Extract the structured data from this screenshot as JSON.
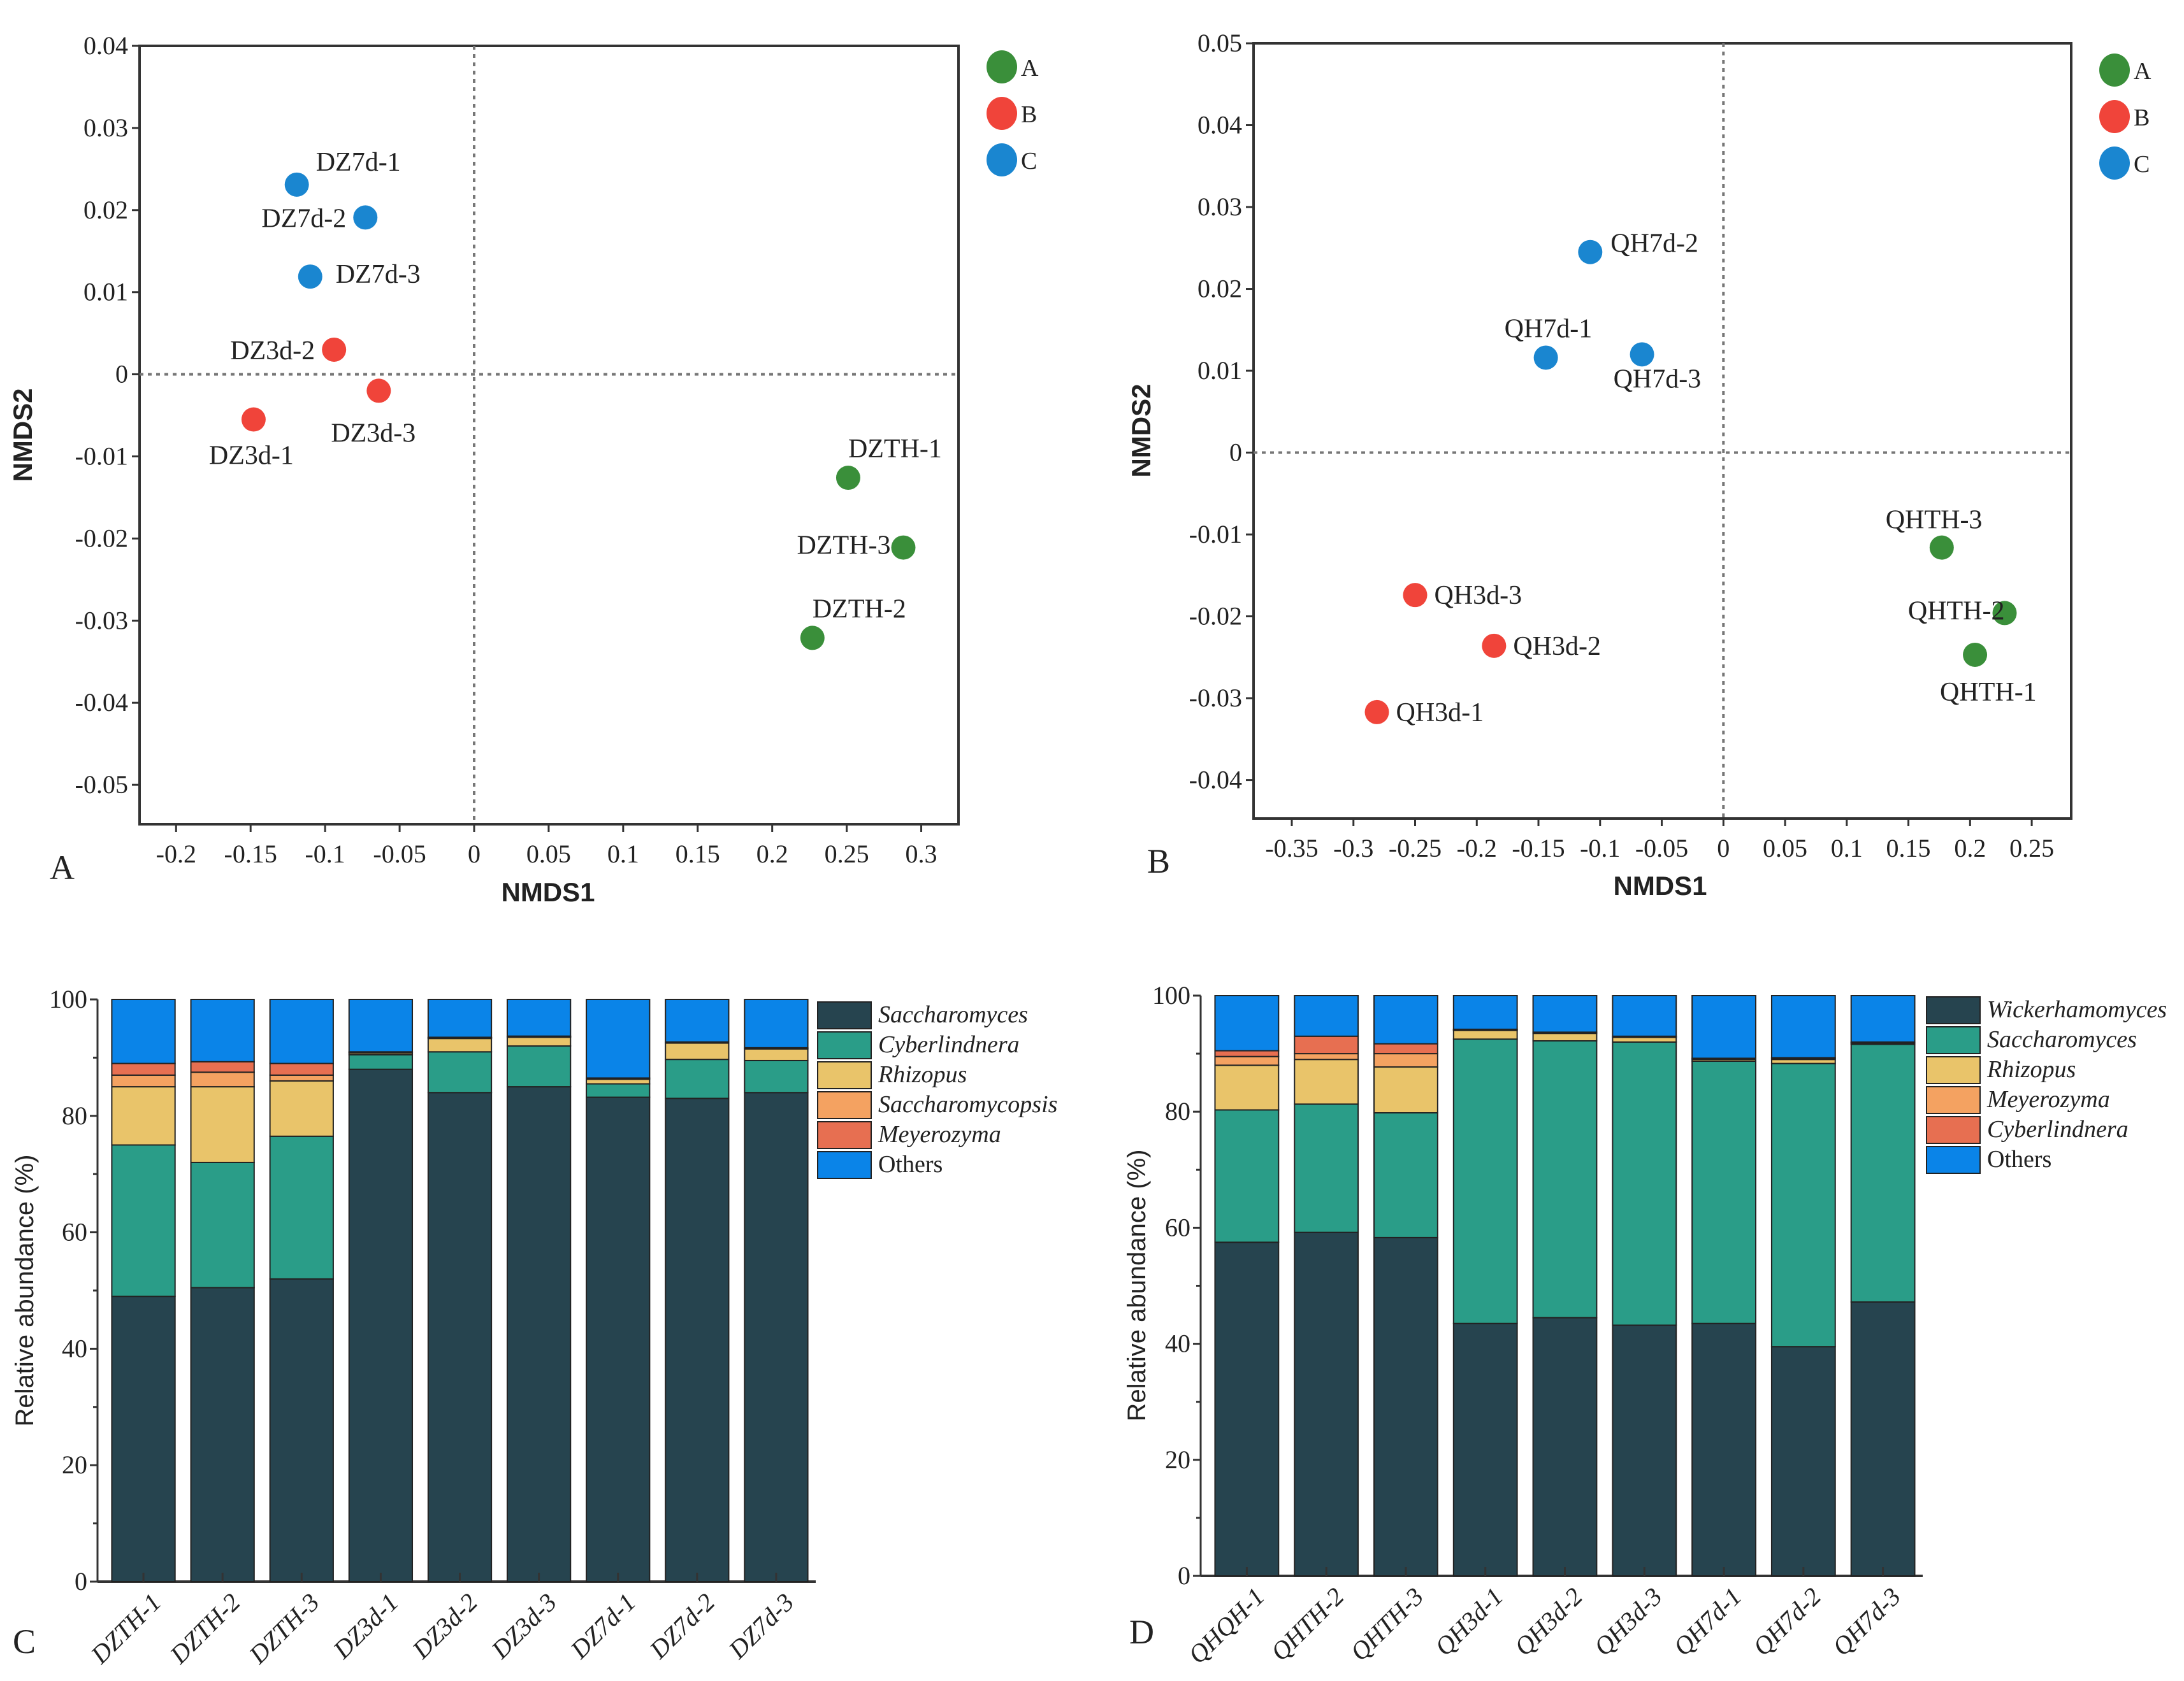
{
  "chart_data": [
    {
      "type": "scatter",
      "panel_label": "A",
      "xlabel": "NMDS1",
      "ylabel": "NMDS2",
      "xlim": [
        -0.2245,
        0.325
      ],
      "ylim": [
        -0.0548,
        0.04
      ],
      "xticks": [
        "-0.2",
        "-0.15",
        "-0.1",
        "-0.05",
        "0",
        "0.05",
        "0.1",
        "0.15",
        "0.2",
        "0.25",
        "0.3"
      ],
      "yticks": [
        "-0.05",
        "-0.04",
        "-0.03",
        "-0.02",
        "-0.01",
        "0",
        "0.01",
        "0.02",
        "0.03",
        "0.04"
      ],
      "reference_lines": "dotted at x=0 and y=0",
      "legend": [
        {
          "name": "A",
          "color": "#3a8f3a"
        },
        {
          "name": "B",
          "color": "#f0443a"
        },
        {
          "name": "C",
          "color": "#1a86d0"
        }
      ],
      "points": [
        {
          "label": "DZ7d-1",
          "group": "C",
          "x": -0.119,
          "y": 0.0231
        },
        {
          "label": "DZ7d-2",
          "group": "C",
          "x": -0.073,
          "y": 0.0191
        },
        {
          "label": "DZ7d-3",
          "group": "C",
          "x": -0.11,
          "y": 0.0119
        },
        {
          "label": "DZ3d-2",
          "group": "B",
          "x": -0.094,
          "y": 0.003
        },
        {
          "label": "DZ3d-3",
          "group": "B",
          "x": -0.064,
          "y": -0.002
        },
        {
          "label": "DZ3d-1",
          "group": "B",
          "x": -0.148,
          "y": -0.0055
        },
        {
          "label": "DZTH-1",
          "group": "A",
          "x": 0.251,
          "y": -0.0126
        },
        {
          "label": "DZTH-3",
          "group": "A",
          "x": 0.288,
          "y": -0.0211
        },
        {
          "label": "DZTH-2",
          "group": "A",
          "x": 0.227,
          "y": -0.0321
        }
      ]
    },
    {
      "type": "scatter",
      "panel_label": "B",
      "xlabel": "NMDS1",
      "ylabel": "NMDS2",
      "xlim": [
        -0.381,
        0.282
      ],
      "ylim": [
        -0.0447,
        0.05
      ],
      "xticks": [
        "-0.35",
        "-0.3",
        "-0.25",
        "-0.2",
        "-0.15",
        "-0.1",
        "-0.05",
        "0",
        "0.05",
        "0.1",
        "0.15",
        "0.2",
        "0.25"
      ],
      "yticks": [
        "-0.04",
        "-0.03",
        "-0.02",
        "-0.01",
        "0",
        "0.01",
        "0.02",
        "0.03",
        "0.04",
        "0.05"
      ],
      "reference_lines": "dotted at x=0 and y=0",
      "legend": [
        {
          "name": "A",
          "color": "#3a8f3a"
        },
        {
          "name": "B",
          "color": "#f0443a"
        },
        {
          "name": "C",
          "color": "#1a86d0"
        }
      ],
      "points": [
        {
          "label": "QH7d-2",
          "group": "C",
          "x": -0.108,
          "y": 0.0245
        },
        {
          "label": "QH7d-1",
          "group": "C",
          "x": -0.144,
          "y": 0.0116
        },
        {
          "label": "QH7d-3",
          "group": "C",
          "x": -0.066,
          "y": 0.012
        },
        {
          "label": "QH3d-3",
          "group": "B",
          "x": -0.25,
          "y": -0.0174
        },
        {
          "label": "QH3d-2",
          "group": "B",
          "x": -0.186,
          "y": -0.0236
        },
        {
          "label": "QH3d-1",
          "group": "B",
          "x": -0.281,
          "y": -0.0317
        },
        {
          "label": "QHTH-3",
          "group": "A",
          "x": 0.177,
          "y": -0.0116
        },
        {
          "label": "QHTH-2",
          "group": "A",
          "x": 0.228,
          "y": -0.0196
        },
        {
          "label": "QHTH-1",
          "group": "A",
          "x": 0.204,
          "y": -0.0247
        }
      ]
    },
    {
      "type": "bar",
      "stacked": true,
      "panel_label": "C",
      "ylabel": "Relative abundance (%)",
      "ylim": [
        0,
        100
      ],
      "yticks": [
        "0",
        "20",
        "40",
        "60",
        "80",
        "100"
      ],
      "categories": [
        "DZTH-1",
        "DZTH-2",
        "DZTH-3",
        "DZ3d-1",
        "DZ3d-2",
        "DZ3d-3",
        "DZ7d-1",
        "DZ7d-2",
        "DZ7d-3"
      ],
      "series": [
        {
          "name": "Saccharomyces",
          "italic": true,
          "color": "#26444f",
          "values": [
            49,
            50.5,
            52,
            88,
            84,
            85,
            83.2,
            83,
            84
          ]
        },
        {
          "name": "Cyberlindnera",
          "italic": true,
          "color": "#2a9d88",
          "values": [
            26,
            21.5,
            24.5,
            2.5,
            7,
            7,
            2.3,
            6.7,
            5.5
          ]
        },
        {
          "name": "Rhizopus",
          "italic": true,
          "color": "#e9c46a",
          "values": [
            10,
            13,
            9.5,
            0.3,
            2.3,
            1.5,
            0.8,
            2.8,
            2
          ]
        },
        {
          "name": "Saccharomycopsis",
          "italic": true,
          "color": "#f4a261",
          "values": [
            2,
            2.5,
            1,
            0.1,
            0.1,
            0.1,
            0.1,
            0.1,
            0.1
          ]
        },
        {
          "name": "Meyerozyma",
          "italic": true,
          "color": "#e76f51",
          "values": [
            2,
            1.8,
            2,
            0.1,
            0.1,
            0.1,
            0.1,
            0.1,
            0.1
          ]
        },
        {
          "name": "Others",
          "italic": false,
          "color": "#0a84e8",
          "values": [
            11,
            10.7,
            11,
            9,
            6.5,
            6.3,
            13.5,
            7.3,
            8.3
          ]
        }
      ]
    },
    {
      "type": "bar",
      "stacked": true,
      "panel_label": "D",
      "ylabel": "Relative abundance (%)",
      "ylim": [
        0,
        100
      ],
      "yticks": [
        "0",
        "20",
        "40",
        "60",
        "80",
        "100"
      ],
      "categories": [
        "QHQH-1",
        "QHTH-2",
        "QHTH-3",
        "QH3d-1",
        "QH3d-2",
        "QH3d-3",
        "QH7d-1",
        "QH7d-2",
        "QH7d-3"
      ],
      "series": [
        {
          "name": "Wickerhamomyces",
          "italic": true,
          "color": "#26444f",
          "values": [
            57.5,
            59.2,
            58.3,
            43.5,
            44.5,
            43.2,
            43.5,
            39.5,
            47.2
          ]
        },
        {
          "name": "Saccharomyces",
          "italic": true,
          "color": "#2a9d88",
          "values": [
            22.8,
            22.1,
            21.5,
            49,
            47.7,
            48.8,
            45.2,
            48.8,
            44.4
          ]
        },
        {
          "name": "Rhizopus",
          "italic": true,
          "color": "#e9c46a",
          "values": [
            7.7,
            7.7,
            7.9,
            1.5,
            1.3,
            0.8,
            0.3,
            0.7,
            0.2
          ]
        },
        {
          "name": "Meyerozyma",
          "italic": true,
          "color": "#f4a261",
          "values": [
            1.5,
            1,
            2.3,
            0.1,
            0.1,
            0.1,
            0.1,
            0.2,
            0.1
          ]
        },
        {
          "name": "Cyberlindnera",
          "italic": true,
          "color": "#e76f51",
          "values": [
            1,
            3,
            1.7,
            0.1,
            0.1,
            0.1,
            0.1,
            0.1,
            0.1
          ]
        },
        {
          "name": "Others",
          "italic": false,
          "color": "#0a84e8",
          "values": [
            9.5,
            7,
            8.3,
            5.8,
            6.3,
            7,
            10.8,
            10.7,
            8
          ]
        }
      ]
    }
  ]
}
